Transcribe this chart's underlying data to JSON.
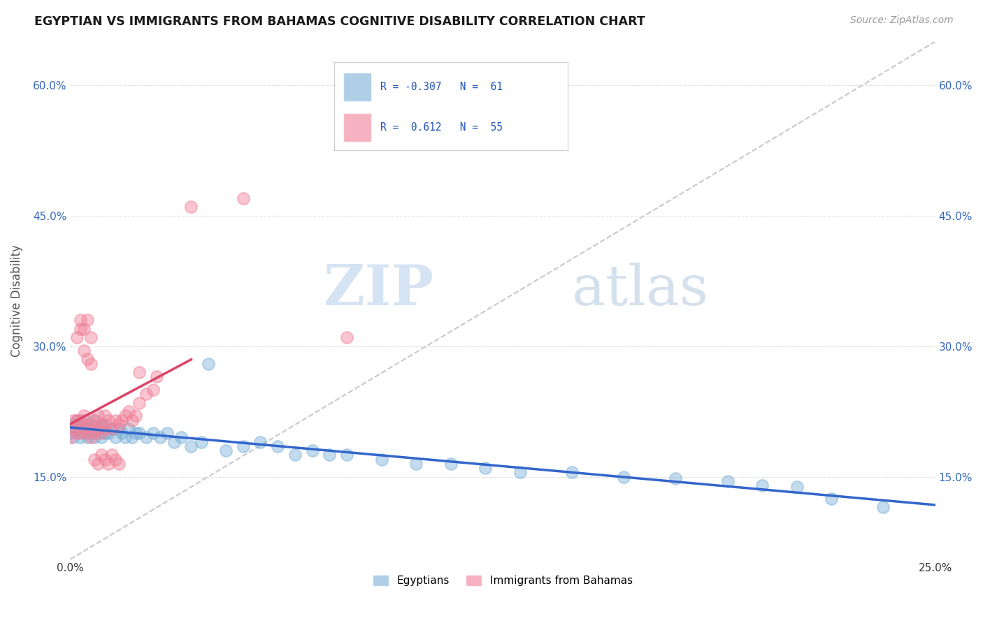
{
  "title": "EGYPTIAN VS IMMIGRANTS FROM BAHAMAS COGNITIVE DISABILITY CORRELATION CHART",
  "source": "Source: ZipAtlas.com",
  "ylabel": "Cognitive Disability",
  "watermark_zip": "ZIP",
  "watermark_atlas": "atlas",
  "x_min": 0.0,
  "x_max": 0.25,
  "y_min": 0.055,
  "y_max": 0.65,
  "legend_label_blue": "Egyptians",
  "legend_label_pink": "Immigrants from Bahamas",
  "blue_color": "#7ab0d8",
  "pink_color": "#f08098",
  "blue_line_color": "#3366cc",
  "pink_line_color": "#dd4466",
  "diagonal_line_color": "#c8c8c8",
  "grid_color": "#dddddd",
  "background_color": "#ffffff",
  "blue_scatter_x": [
    0.0,
    0.001,
    0.001,
    0.002,
    0.002,
    0.003,
    0.003,
    0.004,
    0.004,
    0.005,
    0.005,
    0.006,
    0.006,
    0.007,
    0.007,
    0.008,
    0.008,
    0.009,
    0.009,
    0.01,
    0.01,
    0.011,
    0.012,
    0.013,
    0.014,
    0.015,
    0.016,
    0.017,
    0.018,
    0.019,
    0.02,
    0.022,
    0.024,
    0.026,
    0.028,
    0.03,
    0.032,
    0.035,
    0.038,
    0.04,
    0.045,
    0.05,
    0.055,
    0.06,
    0.065,
    0.07,
    0.075,
    0.08,
    0.09,
    0.1,
    0.11,
    0.12,
    0.13,
    0.145,
    0.16,
    0.175,
    0.19,
    0.2,
    0.21,
    0.22,
    0.235
  ],
  "blue_scatter_y": [
    0.2,
    0.195,
    0.21,
    0.205,
    0.215,
    0.195,
    0.21,
    0.2,
    0.215,
    0.195,
    0.205,
    0.2,
    0.21,
    0.195,
    0.215,
    0.2,
    0.205,
    0.195,
    0.21,
    0.2,
    0.21,
    0.2,
    0.205,
    0.195,
    0.205,
    0.2,
    0.195,
    0.205,
    0.195,
    0.2,
    0.2,
    0.195,
    0.2,
    0.195,
    0.2,
    0.19,
    0.195,
    0.185,
    0.19,
    0.28,
    0.18,
    0.185,
    0.19,
    0.185,
    0.175,
    0.18,
    0.175,
    0.175,
    0.17,
    0.165,
    0.165,
    0.16,
    0.155,
    0.155,
    0.15,
    0.148,
    0.145,
    0.14,
    0.138,
    0.125,
    0.115
  ],
  "pink_scatter_x": [
    0.0,
    0.001,
    0.001,
    0.002,
    0.002,
    0.003,
    0.003,
    0.004,
    0.004,
    0.005,
    0.005,
    0.006,
    0.006,
    0.007,
    0.007,
    0.008,
    0.008,
    0.009,
    0.009,
    0.01,
    0.01,
    0.011,
    0.012,
    0.013,
    0.014,
    0.015,
    0.016,
    0.017,
    0.018,
    0.019,
    0.02,
    0.022,
    0.024,
    0.003,
    0.004,
    0.005,
    0.006,
    0.007,
    0.008,
    0.009,
    0.01,
    0.011,
    0.012,
    0.013,
    0.014,
    0.002,
    0.003,
    0.004,
    0.005,
    0.006,
    0.02,
    0.025,
    0.035,
    0.05,
    0.08
  ],
  "pink_scatter_y": [
    0.195,
    0.205,
    0.215,
    0.2,
    0.215,
    0.2,
    0.215,
    0.205,
    0.22,
    0.2,
    0.21,
    0.195,
    0.21,
    0.2,
    0.215,
    0.205,
    0.22,
    0.2,
    0.21,
    0.205,
    0.22,
    0.215,
    0.205,
    0.215,
    0.21,
    0.215,
    0.22,
    0.225,
    0.215,
    0.22,
    0.235,
    0.245,
    0.25,
    0.33,
    0.32,
    0.33,
    0.31,
    0.17,
    0.165,
    0.175,
    0.17,
    0.165,
    0.175,
    0.17,
    0.165,
    0.31,
    0.32,
    0.295,
    0.285,
    0.28,
    0.27,
    0.265,
    0.46,
    0.47,
    0.31
  ]
}
